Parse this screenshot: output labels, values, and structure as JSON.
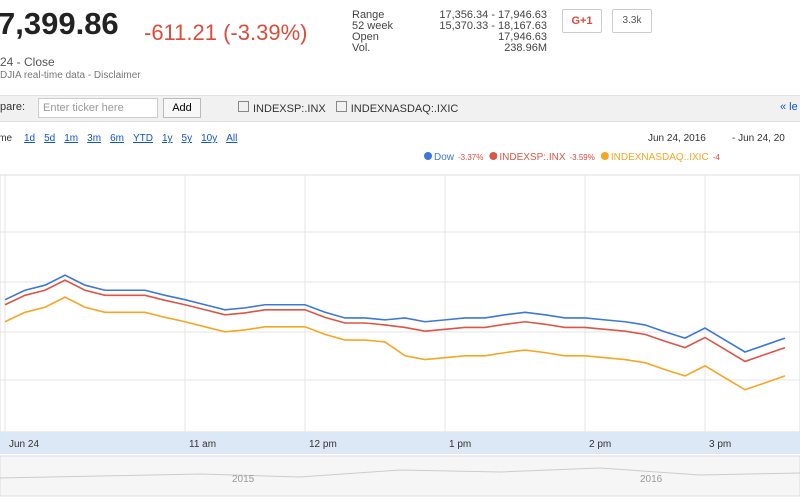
{
  "header": {
    "price": "7,399.86",
    "change": "-611.21 (-3.39%)",
    "status": "24 - Close",
    "source": "DJIA real-time data - Disclaimer",
    "stats": [
      [
        "Range",
        "17,356.34 - 17,946.63"
      ],
      [
        "52 week",
        "15,370.33 - 18,167.63"
      ],
      [
        "Open",
        "17,946.63"
      ],
      [
        "Vol.",
        "238.96M"
      ]
    ],
    "plus_button": "G+1",
    "share_count": "3.3k"
  },
  "compare": {
    "label": "pare:",
    "placeholder": "Enter ticker here",
    "add_button": "Add",
    "checks": [
      "INDEXSP:.INX",
      "INDEXNASDAQ:.IXIC"
    ],
    "more": "« le"
  },
  "zoom": {
    "label": "ime",
    "links": [
      "1d",
      "5d",
      "1m",
      "3m",
      "6m",
      "YTD",
      "1y",
      "5y",
      "10y",
      "All"
    ],
    "date_from": "Jun 24, 2016",
    "date_to": "- Jun 24, 20"
  },
  "navigator": {
    "labels": [
      "2015",
      "2016"
    ]
  },
  "chart_data": {
    "type": "line",
    "ylim": [
      -5,
      -1
    ],
    "categories": [
      "Jun 24",
      null,
      null,
      null,
      null,
      null,
      null,
      null,
      null,
      "11 am",
      null,
      null,
      null,
      null,
      null,
      "12 pm",
      null,
      null,
      null,
      null,
      null,
      null,
      "1 pm",
      null,
      null,
      null,
      null,
      null,
      null,
      "2 pm",
      null,
      null,
      null,
      null,
      null,
      "3 pm",
      null,
      null,
      null,
      null
    ],
    "series": [
      {
        "name": "Dow",
        "change": "-3.37%",
        "color": "#3c78d8",
        "values": [
          -2.9,
          -2.75,
          -2.67,
          -2.51,
          -2.67,
          -2.75,
          -2.75,
          -2.75,
          -2.83,
          -2.9,
          -2.98,
          -3.06,
          -3.03,
          -2.98,
          -2.98,
          -2.98,
          -3.1,
          -3.19,
          -3.19,
          -3.22,
          -3.19,
          -3.25,
          -3.22,
          -3.19,
          -3.19,
          -3.14,
          -3.1,
          -3.14,
          -3.19,
          -3.19,
          -3.22,
          -3.25,
          -3.3,
          -3.41,
          -3.51,
          -3.35,
          -3.54,
          -3.73,
          -3.62,
          -3.51
        ]
      },
      {
        "name": "INDEXSP:.INX",
        "change": "-3.59%",
        "color": "#dd5544",
        "values": [
          -2.98,
          -2.83,
          -2.75,
          -2.59,
          -2.75,
          -2.83,
          -2.83,
          -2.83,
          -2.91,
          -2.98,
          -3.06,
          -3.14,
          -3.11,
          -3.06,
          -3.06,
          -3.06,
          -3.18,
          -3.27,
          -3.27,
          -3.3,
          -3.34,
          -3.4,
          -3.37,
          -3.34,
          -3.34,
          -3.29,
          -3.25,
          -3.29,
          -3.34,
          -3.34,
          -3.37,
          -3.4,
          -3.45,
          -3.56,
          -3.66,
          -3.5,
          -3.69,
          -3.88,
          -3.77,
          -3.66
        ]
      },
      {
        "name": "INDEXNASDAQ:.IXIC",
        "change": "-4",
        "color": "#f6a623",
        "values": [
          -3.25,
          -3.1,
          -3.02,
          -2.86,
          -3.02,
          -3.1,
          -3.1,
          -3.1,
          -3.18,
          -3.25,
          -3.33,
          -3.41,
          -3.38,
          -3.33,
          -3.33,
          -3.33,
          -3.45,
          -3.54,
          -3.54,
          -3.57,
          -3.79,
          -3.85,
          -3.82,
          -3.79,
          -3.79,
          -3.74,
          -3.7,
          -3.74,
          -3.79,
          -3.79,
          -3.82,
          -3.85,
          -3.9,
          -4.01,
          -4.11,
          -3.95,
          -4.14,
          -4.33,
          -4.22,
          -4.11
        ]
      }
    ]
  }
}
